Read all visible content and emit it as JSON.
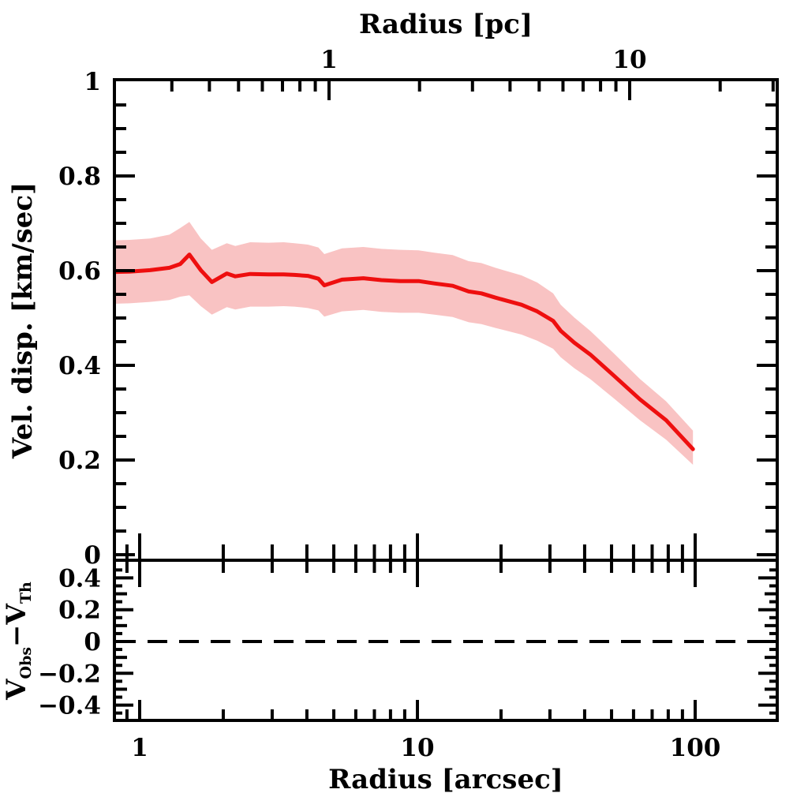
{
  "figure": {
    "background": "#ffffff",
    "axis_color": "#000000",
    "line_color": "#ee0f0f",
    "band_color": "#f9c3c3"
  },
  "chart_data": {
    "type": "line",
    "description": "Velocity dispersion radial profile with 1-sigma shaded band (upper panel) and residual panel with dashed zero reference line (lower panel); log x-axis.",
    "top_xlabel": "Radius [pc]",
    "bottom_xlabel": "Radius [arcsec]",
    "main_ylabel": "Vel. disp. [km/sec]",
    "residual_ylabel_parts": [
      {
        "t": "V",
        "sub": false
      },
      {
        "t": "Obs",
        "sub": true
      },
      {
        "t": "−V",
        "sub": false
      },
      {
        "t": "Th",
        "sub": true
      }
    ],
    "x_scale": "log",
    "x_range_arcsec": [
      0.8,
      200
    ],
    "top_x_range_pc": [
      0.19,
      31
    ],
    "main_y_range": [
      0,
      1
    ],
    "residual_y_range": [
      -0.5,
      0.5
    ],
    "bottom_x_ticks": [
      {
        "v": 1,
        "label": "1"
      },
      {
        "v": 10,
        "label": "10"
      },
      {
        "v": 100,
        "label": "100"
      }
    ],
    "top_x_ticks": [
      {
        "v": 1,
        "label": "1"
      },
      {
        "v": 10,
        "label": "10"
      }
    ],
    "main_y_ticks": [
      {
        "v": 1,
        "label": "1"
      },
      {
        "v": 0.8,
        "label": "0.8"
      },
      {
        "v": 0.6,
        "label": "0.6"
      },
      {
        "v": 0.4,
        "label": "0.4"
      },
      {
        "v": 0.2,
        "label": "0.2"
      },
      {
        "v": 0,
        "label": "0"
      }
    ],
    "residual_y_ticks": [
      {
        "v": 0.4,
        "label": "0.4"
      },
      {
        "v": 0.2,
        "label": "0.2"
      },
      {
        "v": 0,
        "label": "0"
      },
      {
        "v": -0.2,
        "label": "−0.2"
      },
      {
        "v": -0.4,
        "label": "−0.4"
      }
    ],
    "grid": false,
    "legend": "none",
    "series": [
      {
        "name": "velocity dispersion profile",
        "color": "#ee0f0f",
        "band_color": "#f9c3c3",
        "points": [
          {
            "r": 0.8,
            "v": 0.597,
            "lo": 0.53,
            "hi": 0.664
          },
          {
            "r": 0.92,
            "v": 0.598,
            "lo": 0.531,
            "hi": 0.665
          },
          {
            "r": 1.09,
            "v": 0.601,
            "lo": 0.534,
            "hi": 0.668
          },
          {
            "r": 1.28,
            "v": 0.606,
            "lo": 0.538,
            "hi": 0.676
          },
          {
            "r": 1.4,
            "v": 0.614,
            "lo": 0.545,
            "hi": 0.69
          },
          {
            "r": 1.51,
            "v": 0.634,
            "lo": 0.548,
            "hi": 0.703
          },
          {
            "r": 1.66,
            "v": 0.601,
            "lo": 0.525,
            "hi": 0.668
          },
          {
            "r": 1.82,
            "v": 0.576,
            "lo": 0.507,
            "hi": 0.644
          },
          {
            "r": 2.06,
            "v": 0.594,
            "lo": 0.523,
            "hi": 0.658
          },
          {
            "r": 2.21,
            "v": 0.588,
            "lo": 0.518,
            "hi": 0.652
          },
          {
            "r": 2.5,
            "v": 0.593,
            "lo": 0.524,
            "hi": 0.66
          },
          {
            "r": 2.91,
            "v": 0.592,
            "lo": 0.524,
            "hi": 0.659
          },
          {
            "r": 3.3,
            "v": 0.592,
            "lo": 0.525,
            "hi": 0.66
          },
          {
            "r": 3.61,
            "v": 0.591,
            "lo": 0.524,
            "hi": 0.658
          },
          {
            "r": 4.03,
            "v": 0.589,
            "lo": 0.521,
            "hi": 0.655
          },
          {
            "r": 4.4,
            "v": 0.583,
            "lo": 0.516,
            "hi": 0.649
          },
          {
            "r": 4.62,
            "v": 0.569,
            "lo": 0.503,
            "hi": 0.635
          },
          {
            "r": 5.35,
            "v": 0.581,
            "lo": 0.514,
            "hi": 0.647
          },
          {
            "r": 6.39,
            "v": 0.584,
            "lo": 0.517,
            "hi": 0.65
          },
          {
            "r": 7.42,
            "v": 0.58,
            "lo": 0.513,
            "hi": 0.646
          },
          {
            "r": 8.68,
            "v": 0.578,
            "lo": 0.511,
            "hi": 0.644
          },
          {
            "r": 10.1,
            "v": 0.578,
            "lo": 0.511,
            "hi": 0.643
          },
          {
            "r": 11.5,
            "v": 0.573,
            "lo": 0.507,
            "hi": 0.638
          },
          {
            "r": 13.4,
            "v": 0.568,
            "lo": 0.502,
            "hi": 0.633
          },
          {
            "r": 15.3,
            "v": 0.556,
            "lo": 0.491,
            "hi": 0.62
          },
          {
            "r": 17.0,
            "v": 0.552,
            "lo": 0.487,
            "hi": 0.616
          },
          {
            "r": 19.1,
            "v": 0.543,
            "lo": 0.479,
            "hi": 0.606
          },
          {
            "r": 23.7,
            "v": 0.528,
            "lo": 0.465,
            "hi": 0.59
          },
          {
            "r": 27.0,
            "v": 0.514,
            "lo": 0.452,
            "hi": 0.575
          },
          {
            "r": 30.8,
            "v": 0.494,
            "lo": 0.435,
            "hi": 0.552
          },
          {
            "r": 32.8,
            "v": 0.473,
            "lo": 0.417,
            "hi": 0.528
          },
          {
            "r": 36.7,
            "v": 0.448,
            "lo": 0.394,
            "hi": 0.501
          },
          {
            "r": 41.9,
            "v": 0.423,
            "lo": 0.371,
            "hi": 0.473
          },
          {
            "r": 51.0,
            "v": 0.378,
            "lo": 0.33,
            "hi": 0.425
          },
          {
            "r": 63.3,
            "v": 0.328,
            "lo": 0.284,
            "hi": 0.371
          },
          {
            "r": 78.6,
            "v": 0.284,
            "lo": 0.243,
            "hi": 0.324
          },
          {
            "r": 98.2,
            "v": 0.223,
            "lo": 0.19,
            "hi": 0.262
          }
        ]
      }
    ],
    "residual_reference": {
      "value": 0,
      "style": "dashed",
      "color": "#000000"
    }
  }
}
